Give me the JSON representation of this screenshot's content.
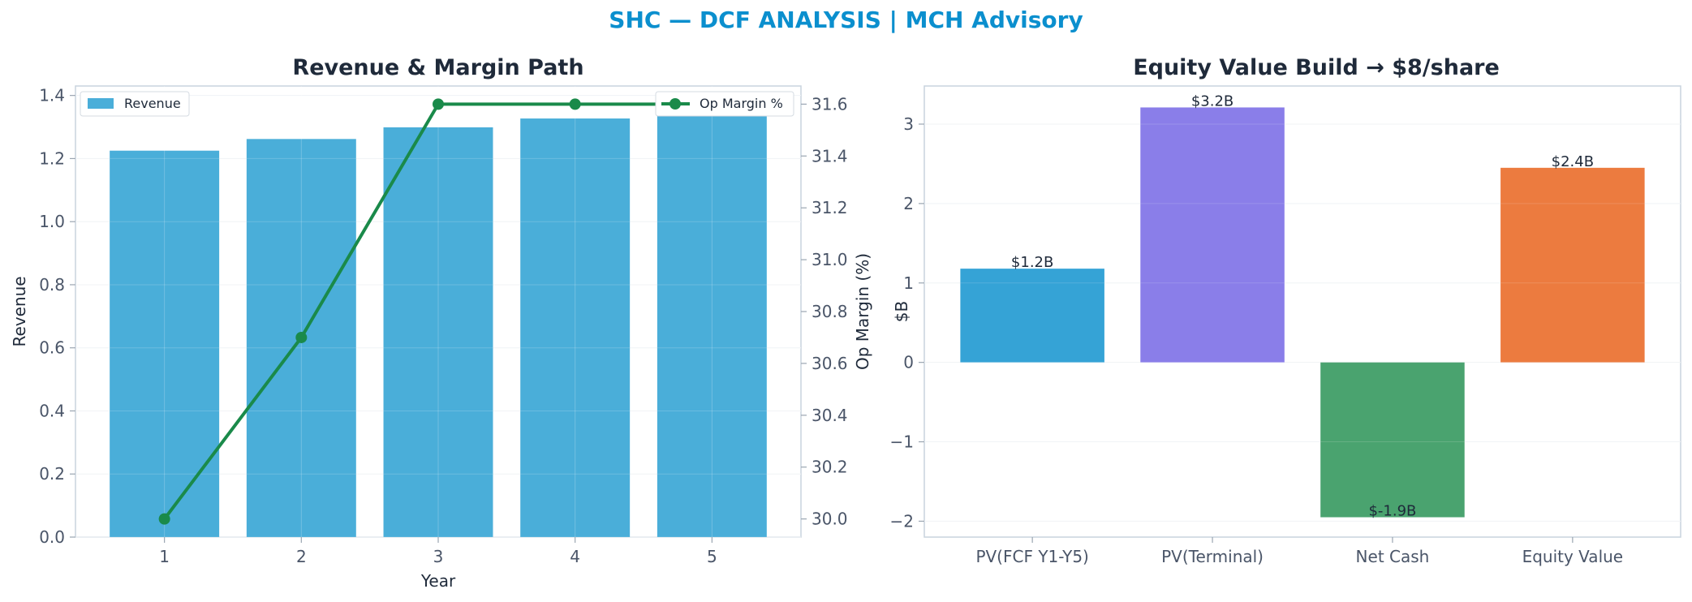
{
  "suptitle": "SHC — DCF ANALYSIS | MCH Advisory",
  "colors": {
    "suptitle": "#0b8fce",
    "revenue_bar": "#4aaed9",
    "op_margin_line": "#1a8a4a",
    "bar_pv_fcf": "#35a3d6",
    "bar_pv_terminal": "#8a7ee9",
    "bar_net_cash": "#4aa36f",
    "bar_equity": "#ec7b3f"
  },
  "chart_data": [
    {
      "type": "bar",
      "title": "Revenue & Margin Path",
      "xlabel": "Year",
      "ylabel": "Revenue",
      "y2label": "Op Margin (%)",
      "categories": [
        "1",
        "2",
        "3",
        "4",
        "5"
      ],
      "series": [
        {
          "name": "Revenue",
          "type": "bar",
          "axis": "left",
          "values": [
            1.225,
            1.262,
            1.299,
            1.327,
            1.36
          ]
        },
        {
          "name": "Op Margin %",
          "type": "line",
          "axis": "right",
          "values": [
            30.0,
            30.7,
            31.6,
            31.6,
            31.6
          ]
        }
      ],
      "ylim": [
        0,
        1.43
      ],
      "y2lim": [
        29.93,
        31.67
      ],
      "yticks": [
        "0.0",
        "0.2",
        "0.4",
        "0.6",
        "0.8",
        "1.0",
        "1.2",
        "1.4"
      ],
      "y2ticks": [
        "30.0",
        "30.2",
        "30.4",
        "30.6",
        "30.8",
        "31.0",
        "31.2",
        "31.4",
        "31.6"
      ],
      "legend_left": "top-left",
      "legend_right": "top-right",
      "grid": true
    },
    {
      "type": "bar",
      "title": "Equity Value Build → $8/share",
      "xlabel": "",
      "ylabel": "$B",
      "categories": [
        "PV(FCF Y1-Y5)",
        "PV(Terminal)",
        "Net Cash",
        "Equity Value"
      ],
      "values": [
        1.18,
        3.21,
        -1.95,
        2.45
      ],
      "data_labels": [
        "$1.2B",
        "$3.2B",
        "$-1.9B",
        "$2.4B"
      ],
      "ylim": [
        -2.2,
        3.48
      ],
      "yticks": [
        "−2",
        "−1",
        "0",
        "1",
        "2",
        "3"
      ],
      "grid": true
    }
  ]
}
